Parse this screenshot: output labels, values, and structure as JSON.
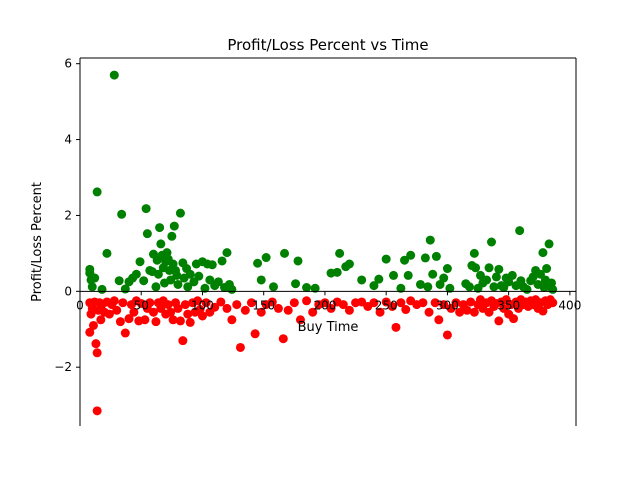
{
  "chart_data": {
    "type": "scatter",
    "title": "Profit/Loss Percent vs Time",
    "xlabel": "Buy Time",
    "ylabel": "Profit/Loss Percent",
    "xlim": [
      0,
      405
    ],
    "ylim": [
      -3.55,
      6.15
    ],
    "x_ticks": [
      0,
      50,
      100,
      150,
      200,
      250,
      300,
      350,
      400
    ],
    "y_ticks": [
      -2,
      0,
      2,
      4,
      6
    ],
    "y_tick_labels": [
      "−2",
      "0",
      "2",
      "4",
      "6"
    ],
    "grid": false,
    "legend": "none",
    "series": [
      {
        "color": "#008000",
        "points": [
          [
            8,
            0.58
          ],
          [
            8,
            0.48
          ],
          [
            9,
            0.3
          ],
          [
            10,
            0.12
          ],
          [
            12,
            0.35
          ],
          [
            14,
            2.62
          ],
          [
            18,
            0.05
          ],
          [
            22,
            1.0
          ],
          [
            28,
            5.7
          ],
          [
            32,
            0.28
          ],
          [
            34,
            2.03
          ],
          [
            37,
            0.06
          ],
          [
            40,
            0.25
          ],
          [
            43,
            0.35
          ],
          [
            46,
            0.45
          ],
          [
            49,
            0.78
          ],
          [
            52,
            0.28
          ],
          [
            54,
            2.18
          ],
          [
            55,
            1.52
          ],
          [
            57,
            0.55
          ],
          [
            59,
            0.52
          ],
          [
            60,
            0.98
          ],
          [
            62,
            0.12
          ],
          [
            63,
            0.82
          ],
          [
            64,
            0.45
          ],
          [
            65,
            1.68
          ],
          [
            66,
            1.25
          ],
          [
            67,
            0.95
          ],
          [
            68,
            0.62
          ],
          [
            69,
            0.22
          ],
          [
            70,
            0.78
          ],
          [
            71,
            1.02
          ],
          [
            72,
            0.85
          ],
          [
            73,
            0.55
          ],
          [
            74,
            0.3
          ],
          [
            75,
            1.45
          ],
          [
            76,
            0.72
          ],
          [
            77,
            1.72
          ],
          [
            78,
            0.55
          ],
          [
            79,
            0.42
          ],
          [
            80,
            0.18
          ],
          [
            82,
            2.06
          ],
          [
            84,
            0.75
          ],
          [
            85,
            0.35
          ],
          [
            87,
            0.6
          ],
          [
            88,
            0.12
          ],
          [
            90,
            0.45
          ],
          [
            93,
            0.25
          ],
          [
            95,
            0.72
          ],
          [
            97,
            0.4
          ],
          [
            100,
            0.78
          ],
          [
            102,
            0.08
          ],
          [
            104,
            0.72
          ],
          [
            106,
            0.3
          ],
          [
            108,
            0.7
          ],
          [
            110,
            0.15
          ],
          [
            113,
            0.25
          ],
          [
            116,
            0.8
          ],
          [
            118,
            0.1
          ],
          [
            120,
            1.02
          ],
          [
            122,
            0.18
          ],
          [
            124,
            0.05
          ],
          [
            145,
            0.74
          ],
          [
            148,
            0.3
          ],
          [
            152,
            0.89
          ],
          [
            158,
            0.12
          ],
          [
            167,
            1.0
          ],
          [
            176,
            0.2
          ],
          [
            178,
            0.8
          ],
          [
            185,
            0.1
          ],
          [
            192,
            0.08
          ],
          [
            205,
            0.48
          ],
          [
            210,
            0.5
          ],
          [
            212,
            1.0
          ],
          [
            217,
            0.65
          ],
          [
            220,
            0.72
          ],
          [
            230,
            0.3
          ],
          [
            240,
            0.15
          ],
          [
            244,
            0.32
          ],
          [
            250,
            0.85
          ],
          [
            256,
            0.42
          ],
          [
            262,
            0.08
          ],
          [
            265,
            0.82
          ],
          [
            268,
            0.42
          ],
          [
            270,
            0.95
          ],
          [
            278,
            0.18
          ],
          [
            282,
            0.88
          ],
          [
            284,
            0.12
          ],
          [
            286,
            1.35
          ],
          [
            288,
            0.45
          ],
          [
            291,
            0.92
          ],
          [
            294,
            0.18
          ],
          [
            297,
            0.35
          ],
          [
            300,
            0.6
          ],
          [
            302,
            0.08
          ],
          [
            315,
            0.2
          ],
          [
            318,
            0.12
          ],
          [
            320,
            0.68
          ],
          [
            322,
            1.0
          ],
          [
            323,
            0.62
          ],
          [
            325,
            0.08
          ],
          [
            327,
            0.42
          ],
          [
            329,
            0.22
          ],
          [
            332,
            0.3
          ],
          [
            334,
            0.62
          ],
          [
            336,
            1.3
          ],
          [
            338,
            0.12
          ],
          [
            340,
            0.38
          ],
          [
            342,
            0.58
          ],
          [
            344,
            0.15
          ],
          [
            346,
            0.1
          ],
          [
            348,
            0.35
          ],
          [
            350,
            0.25
          ],
          [
            353,
            0.42
          ],
          [
            356,
            0.15
          ],
          [
            359,
            1.6
          ],
          [
            360,
            0.28
          ],
          [
            362,
            0.12
          ],
          [
            365,
            0.05
          ],
          [
            368,
            0.28
          ],
          [
            370,
            0.38
          ],
          [
            372,
            0.55
          ],
          [
            374,
            0.18
          ],
          [
            376,
            0.45
          ],
          [
            378,
            1.02
          ],
          [
            379,
            0.1
          ],
          [
            380,
            0.3
          ],
          [
            381,
            0.6
          ],
          [
            382,
            0.2
          ],
          [
            383,
            1.25
          ],
          [
            384,
            0.12
          ],
          [
            385,
            0.22
          ],
          [
            386,
            0.05
          ]
        ]
      },
      {
        "color": "#ff0000",
        "points": [
          [
            8,
            -0.3
          ],
          [
            8,
            -1.08
          ],
          [
            9,
            -0.6
          ],
          [
            10,
            -0.45
          ],
          [
            11,
            -0.9
          ],
          [
            12,
            -0.28
          ],
          [
            13,
            -1.38
          ],
          [
            14,
            -1.62
          ],
          [
            14,
            -3.15
          ],
          [
            15,
            -0.5
          ],
          [
            16,
            -0.3
          ],
          [
            17,
            -0.75
          ],
          [
            18,
            -0.35
          ],
          [
            20,
            -0.55
          ],
          [
            22,
            -0.28
          ],
          [
            24,
            -0.6
          ],
          [
            26,
            -0.35
          ],
          [
            28,
            -0.25
          ],
          [
            30,
            -0.5
          ],
          [
            33,
            -0.8
          ],
          [
            35,
            -0.3
          ],
          [
            37,
            -1.1
          ],
          [
            40,
            -0.72
          ],
          [
            42,
            -0.35
          ],
          [
            44,
            -0.55
          ],
          [
            46,
            -0.25
          ],
          [
            48,
            -0.78
          ],
          [
            50,
            -0.32
          ],
          [
            53,
            -0.75
          ],
          [
            55,
            -0.45
          ],
          [
            57,
            -0.3
          ],
          [
            60,
            -0.55
          ],
          [
            62,
            -0.8
          ],
          [
            64,
            -0.3
          ],
          [
            66,
            -0.45
          ],
          [
            68,
            -0.25
          ],
          [
            70,
            -0.6
          ],
          [
            72,
            -0.35
          ],
          [
            74,
            -0.55
          ],
          [
            76,
            -0.75
          ],
          [
            78,
            -0.3
          ],
          [
            80,
            -0.45
          ],
          [
            82,
            -0.78
          ],
          [
            84,
            -1.3
          ],
          [
            86,
            -0.35
          ],
          [
            88,
            -0.6
          ],
          [
            90,
            -0.82
          ],
          [
            92,
            -0.3
          ],
          [
            94,
            -0.55
          ],
          [
            96,
            -0.25
          ],
          [
            98,
            -0.48
          ],
          [
            100,
            -0.65
          ],
          [
            103,
            -0.3
          ],
          [
            106,
            -0.55
          ],
          [
            110,
            -0.42
          ],
          [
            115,
            -0.28
          ],
          [
            120,
            -0.45
          ],
          [
            124,
            -0.75
          ],
          [
            128,
            -0.35
          ],
          [
            131,
            -1.48
          ],
          [
            135,
            -0.5
          ],
          [
            140,
            -0.3
          ],
          [
            143,
            -1.12
          ],
          [
            148,
            -0.55
          ],
          [
            152,
            -0.35
          ],
          [
            157,
            -0.28
          ],
          [
            162,
            -0.45
          ],
          [
            166,
            -1.25
          ],
          [
            170,
            -0.5
          ],
          [
            175,
            -0.3
          ],
          [
            180,
            -0.75
          ],
          [
            185,
            -0.25
          ],
          [
            190,
            -0.55
          ],
          [
            195,
            -0.35
          ],
          [
            200,
            -0.3
          ],
          [
            205,
            -0.45
          ],
          [
            210,
            -0.28
          ],
          [
            215,
            -0.35
          ],
          [
            220,
            -0.5
          ],
          [
            225,
            -0.3
          ],
          [
            230,
            -0.28
          ],
          [
            235,
            -0.4
          ],
          [
            240,
            -0.3
          ],
          [
            245,
            -0.55
          ],
          [
            250,
            -0.28
          ],
          [
            255,
            -0.4
          ],
          [
            258,
            -0.95
          ],
          [
            262,
            -0.3
          ],
          [
            266,
            -0.48
          ],
          [
            270,
            -0.25
          ],
          [
            275,
            -0.35
          ],
          [
            280,
            -0.3
          ],
          [
            285,
            -0.55
          ],
          [
            290,
            -0.3
          ],
          [
            293,
            -0.75
          ],
          [
            297,
            -0.35
          ],
          [
            300,
            -1.15
          ],
          [
            303,
            -0.45
          ],
          [
            307,
            -0.3
          ],
          [
            310,
            -0.55
          ],
          [
            313,
            -0.35
          ],
          [
            316,
            -0.5
          ],
          [
            319,
            -0.28
          ],
          [
            322,
            -0.55
          ],
          [
            325,
            -0.35
          ],
          [
            327,
            -0.22
          ],
          [
            329,
            -0.45
          ],
          [
            332,
            -0.3
          ],
          [
            334,
            -0.55
          ],
          [
            336,
            -0.25
          ],
          [
            338,
            -0.4
          ],
          [
            340,
            -0.32
          ],
          [
            342,
            -0.78
          ],
          [
            344,
            -0.28
          ],
          [
            346,
            -0.45
          ],
          [
            348,
            -0.22
          ],
          [
            350,
            -0.6
          ],
          [
            352,
            -0.35
          ],
          [
            354,
            -0.72
          ],
          [
            356,
            -0.28
          ],
          [
            358,
            -0.45
          ],
          [
            360,
            -0.22
          ],
          [
            362,
            -0.35
          ],
          [
            364,
            -0.28
          ],
          [
            366,
            -0.4
          ],
          [
            368,
            -0.25
          ],
          [
            370,
            -0.35
          ],
          [
            372,
            -0.22
          ],
          [
            374,
            -0.45
          ],
          [
            376,
            -0.3
          ],
          [
            378,
            -0.52
          ],
          [
            380,
            -0.25
          ],
          [
            382,
            -0.35
          ],
          [
            384,
            -0.22
          ],
          [
            386,
            -0.3
          ]
        ]
      }
    ]
  }
}
